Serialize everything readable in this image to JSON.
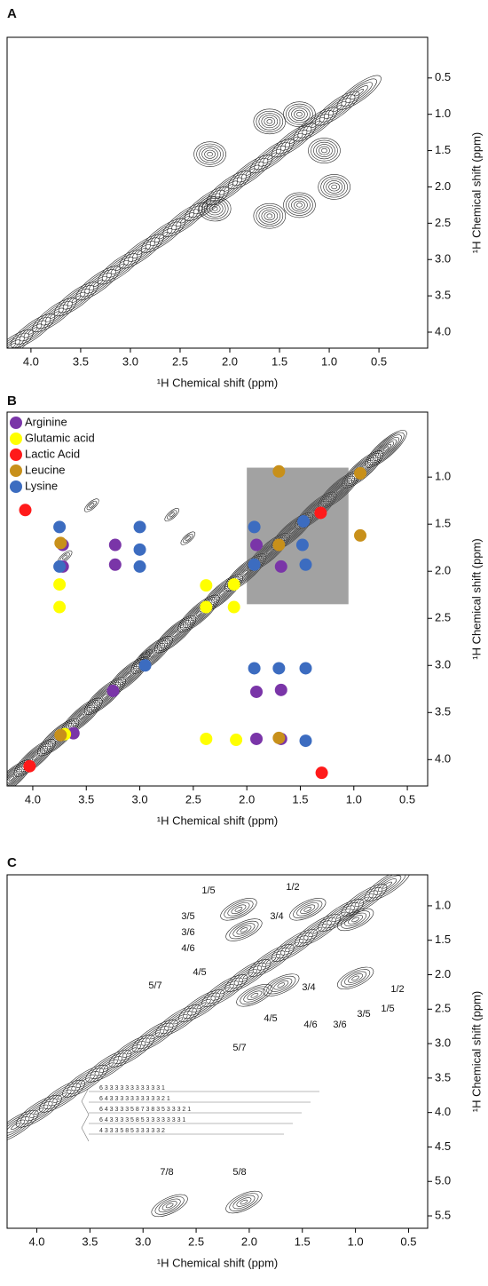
{
  "chart_data": [
    {
      "type": "contour",
      "label": "A",
      "x_label": "¹H Chemical shift (ppm)",
      "y_label": "¹H Chemical shift (ppm)",
      "xlim": [
        4.24,
        0.01
      ],
      "ylim": [
        -0.06,
        4.22
      ],
      "xticks": [
        {
          "value": 4.0,
          "label": "4.0"
        },
        3.5,
        {
          "value": 3.0,
          "label": "3.0"
        },
        2.5,
        {
          "value": 2.0,
          "label": "2.0"
        },
        1.5,
        {
          "value": 1.0,
          "label": "1.0"
        },
        0.5
      ],
      "yticks": [
        0.5,
        {
          "value": 1.0,
          "label": "1.0"
        },
        1.5,
        {
          "value": 2.0,
          "label": "2.0"
        },
        2.5,
        {
          "value": 3.0,
          "label": "3.0"
        },
        3.5,
        {
          "value": 4.0,
          "label": "4.0"
        }
      ]
    },
    {
      "type": "scatter",
      "label": "B",
      "x_label": "¹H Chemical shift (ppm)",
      "y_label": "¹H Chemical shift (ppm)",
      "xlim": [
        4.24,
        0.31
      ],
      "ylim": [
        0.31,
        4.28
      ],
      "legend": "upper left",
      "xticks": [
        {
          "value": 4.0,
          "label": "4.0"
        },
        3.5,
        {
          "value": 3.0,
          "label": "3.0"
        },
        2.5,
        {
          "value": 2.0,
          "label": "2.0"
        },
        1.5,
        {
          "value": 1.0,
          "label": "1.0"
        },
        0.5
      ],
      "yticks": [
        {
          "value": 1.0,
          "label": "1.0"
        },
        1.5,
        {
          "value": 2.0,
          "label": "2.0"
        },
        2.5,
        {
          "value": 3.0,
          "label": "3.0"
        },
        3.5,
        {
          "value": 4.0,
          "label": "4.0"
        }
      ],
      "series": [
        {
          "name": "Arginine",
          "color": "#7a35a8",
          "x": [
            3.72,
            3.72,
            3.23,
            3.23,
            1.91,
            1.68,
            1.91,
            1.68,
            1.91,
            1.68,
            3.25,
            3.62
          ],
          "y": [
            1.72,
            1.95,
            1.72,
            1.93,
            1.72,
            1.95,
            3.28,
            3.26,
            3.78,
            3.78,
            3.27,
            3.72
          ]
        },
        {
          "name": "Glutamic acid",
          "color": "#ffff00",
          "x": [
            3.75,
            3.75,
            2.38,
            2.12,
            2.38,
            2.12,
            2.38,
            2.1,
            3.7
          ],
          "y": [
            2.14,
            2.38,
            2.15,
            2.14,
            2.38,
            2.38,
            3.78,
            3.79,
            3.73
          ]
        },
        {
          "name": "Lactic Acid",
          "color": "#ff1a1a",
          "x": [
            4.07,
            4.03,
            1.31,
            1.3
          ],
          "y": [
            1.35,
            4.07,
            1.38,
            4.14
          ]
        },
        {
          "name": "Leucine",
          "color": "#c8901a",
          "x": [
            1.7,
            0.94,
            0.94,
            3.74,
            1.7,
            1.7,
            3.74
          ],
          "y": [
            0.94,
            0.96,
            1.62,
            1.7,
            1.72,
            3.77,
            3.74
          ]
        },
        {
          "name": "Lysine",
          "color": "#3c6cc0",
          "x": [
            3.75,
            3.75,
            3.0,
            3.0,
            3.0,
            1.93,
            1.93,
            1.47,
            1.48,
            1.45,
            2.95,
            1.93,
            1.7,
            1.45,
            1.45
          ],
          "y": [
            1.53,
            1.95,
            1.53,
            1.77,
            1.95,
            1.53,
            1.93,
            1.47,
            1.72,
            1.93,
            3.0,
            3.03,
            3.03,
            3.03,
            3.8
          ]
        }
      ]
    },
    {
      "type": "contour",
      "label": "C",
      "x_label": "¹H Chemical shift (ppm)",
      "y_label": "¹H Chemical shift (ppm)",
      "xlim": [
        4.28,
        0.32
      ],
      "ylim": [
        0.55,
        5.68
      ],
      "xticks": [
        {
          "value": 4.0,
          "label": "4.0"
        },
        3.5,
        {
          "value": 3.0,
          "label": "3.0"
        },
        2.5,
        {
          "value": 2.0,
          "label": "2.0"
        },
        1.5,
        {
          "value": 1.0,
          "label": "1.0"
        },
        0.5
      ],
      "yticks": [
        {
          "value": 1.0,
          "label": "1.0"
        },
        1.5,
        {
          "value": 2.0,
          "label": "2.0"
        },
        2.5,
        {
          "value": 3.0,
          "label": "3.0"
        },
        3.5,
        {
          "value": 4.0,
          "label": "4.0"
        },
        4.5,
        {
          "value": 5.0,
          "label": "5.0"
        },
        5.5
      ],
      "annotations": [
        "1/5",
        "3/5",
        "3/6",
        "4/6",
        "4/5",
        "5/7",
        "1/2",
        "3/4",
        "3/4",
        "1/2",
        "4/5",
        "4/6",
        "3/6",
        "3/5",
        "1/5",
        "5/7",
        "7/8",
        "5/8"
      ],
      "structure": [
        "6   3   3   3   3   3   3   3   3   3   3   3   1",
        "6  4  3   3   3   3   3   3   3   3   3   3   2   1",
        "6  4  3  3  3  3  5  8  7  3  8  3  5  3  3  3  2  1",
        "6  4  3  3  3  3  5  8  5  3  3  3  3  3  3  3  1",
        "4   3   3   3   5   8   5   3   3   3   3   3   2"
      ]
    }
  ]
}
